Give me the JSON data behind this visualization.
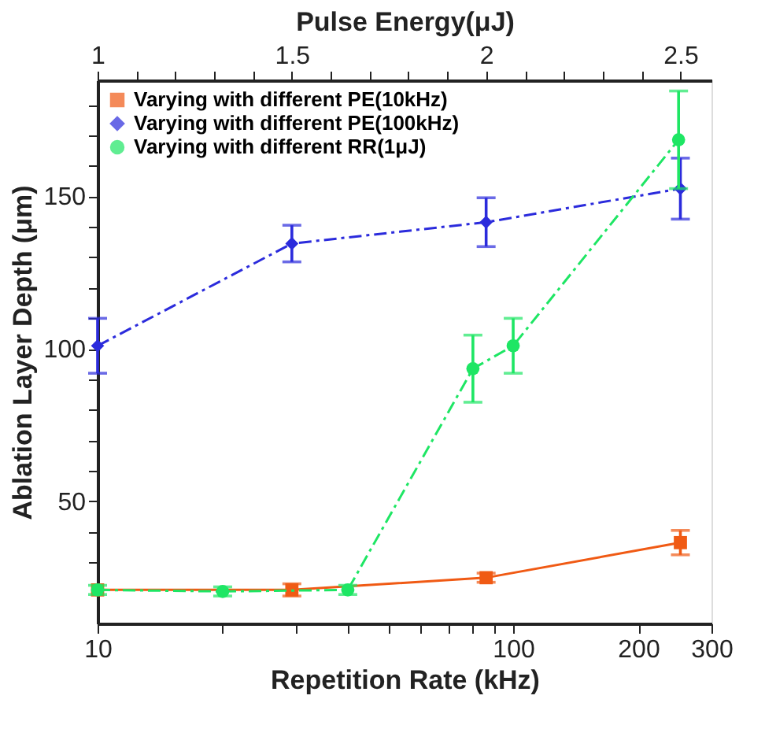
{
  "chart_data": {
    "type": "line",
    "xlabel": "Repetition Rate (kHz)",
    "x2label": "Pulse Energy(μJ)",
    "ylabel": "Ablation Layer Depth (μm)",
    "log": "x",
    "xlim": [
      10,
      300
    ],
    "xticks": [
      10,
      {
        "value": 20,
        "label": null
      },
      {
        "value": 30,
        "label": null
      },
      {
        "value": 40,
        "label": null
      },
      {
        "value": 50,
        "label": null
      },
      {
        "value": 60,
        "label": null
      },
      {
        "value": 70,
        "label": null
      },
      {
        "value": 80,
        "label": null
      },
      {
        "value": 90,
        "label": null
      },
      100,
      200,
      300
    ],
    "x2lim": [
      1,
      2.58
    ],
    "x2ticks": [
      1,
      {
        "value": 1.1,
        "label": null
      },
      {
        "value": 1.2,
        "label": null
      },
      {
        "value": 1.3,
        "label": null
      },
      {
        "value": 1.4,
        "label": null
      },
      1.5,
      {
        "value": 1.6,
        "label": null
      },
      {
        "value": 1.7,
        "label": null
      },
      {
        "value": 1.8,
        "label": null
      },
      {
        "value": 1.9,
        "label": null
      },
      2,
      {
        "value": 2.1,
        "label": null
      },
      {
        "value": 2.2,
        "label": null
      },
      {
        "value": 2.3,
        "label": null
      },
      {
        "value": 2.4,
        "label": null
      },
      2.5
    ],
    "ylim": [
      10,
      188
    ],
    "yticks": [
      {
        "value": 30,
        "label": null
      },
      {
        "value": 40,
        "label": null
      },
      50,
      {
        "value": 60,
        "label": null
      },
      {
        "value": 70,
        "label": null
      },
      {
        "value": 80,
        "label": null
      },
      {
        "value": 90,
        "label": null
      },
      100,
      {
        "value": 110,
        "label": null
      },
      {
        "value": 120,
        "label": null
      },
      {
        "value": 130,
        "label": null
      },
      {
        "value": 140,
        "label": null
      },
      150,
      {
        "value": 160,
        "label": null
      },
      {
        "value": 170,
        "label": null
      },
      {
        "value": 180,
        "label": null
      }
    ],
    "grid": false,
    "legend": "top left",
    "series": [
      {
        "name": "Varying with different PE(10kHz)",
        "color": "#f05a14",
        "axis": "x2",
        "marker": "square",
        "line_style": "solid",
        "x": [
          1,
          1.5,
          2,
          2.5
        ],
        "values": [
          21,
          21,
          25,
          36.5
        ],
        "errors": [
          null,
          2,
          1.5,
          4
        ]
      },
      {
        "name": "Varying with different PE(100kHz)",
        "color": "#2b2bdc",
        "axis": "x2",
        "marker": "diamond",
        "line_style": "dashed",
        "x": [
          1,
          1.5,
          2,
          2.5
        ],
        "values": [
          101,
          134.5,
          141.5,
          152.5
        ],
        "errors": [
          9,
          6,
          8,
          10
        ]
      },
      {
        "name": "Varying with different RR(1μJ)",
        "color": "#1ee664",
        "marker": "circle",
        "line_style": "dashed",
        "x": [
          10,
          20,
          40,
          80,
          100,
          250
        ],
        "values": [
          21,
          20.5,
          21,
          93.5,
          101,
          168.5
        ],
        "errors": [
          1.5,
          1.5,
          1.5,
          11,
          9,
          16
        ]
      }
    ]
  }
}
